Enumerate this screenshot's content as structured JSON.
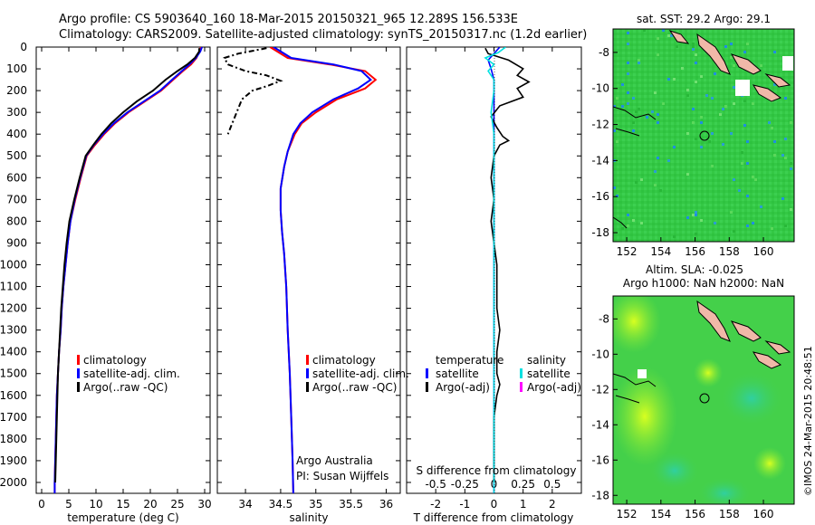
{
  "header": {
    "title_line1": "Argo profile: CS 5903640_160 18-Mar-2015 20150321_965 12.289S 156.533E",
    "title_line2": "Climatology: CARS2009. Satellite-adjusted climatology: synTS_20150317.nc (1.2d earlier)"
  },
  "colors": {
    "climatology": "#ff0000",
    "satellite_adj": "#0000ff",
    "argo": "#000000",
    "salinity_sat": "#00e0e0",
    "salinity_argo": "#ff00ff",
    "sst_map_bg": "#33cc44",
    "sla_map_bg": "#44d04a",
    "land": "#f0b8a8"
  },
  "credit": "©IMOS 24-Mar-2015 20:48:51",
  "chart_data": [
    {
      "type": "line",
      "id": "temperature-profile",
      "xlabel": "temperature (deg C)",
      "ylabel": "",
      "xlim": [
        -1,
        31
      ],
      "ylim": [
        2050,
        0
      ],
      "xticks": [
        0,
        5,
        10,
        15,
        20,
        25,
        30
      ],
      "yticks": [
        0,
        100,
        200,
        300,
        400,
        500,
        600,
        700,
        800,
        900,
        1000,
        1100,
        1200,
        1300,
        1400,
        1500,
        1600,
        1700,
        1800,
        1900,
        2000
      ],
      "legend": [
        "climatology",
        "satellite-adj. clim.",
        "Argo(..raw -QC)"
      ],
      "series": [
        {
          "name": "climatology",
          "color": "#ff0000",
          "points": [
            [
              29.3,
              0
            ],
            [
              29.0,
              20
            ],
            [
              28.5,
              50
            ],
            [
              27.5,
              80
            ],
            [
              26.0,
              110
            ],
            [
              24.2,
              150
            ],
            [
              22.0,
              200
            ],
            [
              19.0,
              250
            ],
            [
              16.0,
              300
            ],
            [
              13.5,
              350
            ],
            [
              11.5,
              400
            ],
            [
              9.8,
              450
            ],
            [
              8.3,
              500
            ],
            [
              7.2,
              600
            ],
            [
              6.2,
              700
            ],
            [
              5.3,
              800
            ],
            [
              4.8,
              900
            ],
            [
              4.4,
              1000
            ],
            [
              4.0,
              1100
            ],
            [
              3.7,
              1200
            ],
            [
              3.5,
              1300
            ],
            [
              3.2,
              1400
            ],
            [
              3.0,
              1500
            ],
            [
              2.8,
              1600
            ],
            [
              2.7,
              1700
            ],
            [
              2.6,
              1800
            ],
            [
              2.5,
              1900
            ],
            [
              2.4,
              2000
            ],
            [
              2.4,
              2050
            ]
          ]
        },
        {
          "name": "satellite-adj. clim.",
          "color": "#0000ff",
          "points": [
            [
              29.5,
              0
            ],
            [
              29.2,
              20
            ],
            [
              28.4,
              50
            ],
            [
              27.2,
              80
            ],
            [
              25.8,
              110
            ],
            [
              24.0,
              150
            ],
            [
              21.8,
              200
            ],
            [
              18.8,
              250
            ],
            [
              15.8,
              300
            ],
            [
              13.3,
              350
            ],
            [
              11.3,
              400
            ],
            [
              9.6,
              450
            ],
            [
              8.2,
              500
            ],
            [
              7.1,
              600
            ],
            [
              6.1,
              700
            ],
            [
              5.3,
              800
            ],
            [
              4.8,
              900
            ],
            [
              4.4,
              1000
            ],
            [
              4.0,
              1100
            ],
            [
              3.7,
              1200
            ],
            [
              3.5,
              1300
            ],
            [
              3.2,
              1400
            ],
            [
              3.0,
              1500
            ],
            [
              2.8,
              1600
            ],
            [
              2.7,
              1700
            ],
            [
              2.6,
              1800
            ],
            [
              2.5,
              1900
            ],
            [
              2.4,
              2000
            ],
            [
              2.4,
              2050
            ]
          ]
        },
        {
          "name": "Argo(..raw -QC)",
          "color": "#000000",
          "points": [
            [
              29.0,
              5
            ],
            [
              29.0,
              20
            ],
            [
              28.2,
              50
            ],
            [
              26.8,
              80
            ],
            [
              25.0,
              110
            ],
            [
              22.8,
              150
            ],
            [
              20.5,
              200
            ],
            [
              17.5,
              250
            ],
            [
              15.0,
              300
            ],
            [
              12.8,
              350
            ],
            [
              11.0,
              400
            ],
            [
              9.5,
              450
            ],
            [
              8.1,
              500
            ],
            [
              7.0,
              600
            ],
            [
              6.0,
              700
            ],
            [
              5.1,
              800
            ],
            [
              4.6,
              900
            ],
            [
              4.2,
              1000
            ],
            [
              3.9,
              1100
            ],
            [
              3.6,
              1200
            ],
            [
              3.4,
              1300
            ],
            [
              3.2,
              1400
            ],
            [
              3.0,
              1500
            ],
            [
              2.9,
              1600
            ],
            [
              2.8,
              1700
            ],
            [
              2.7,
              1800
            ],
            [
              2.6,
              1900
            ],
            [
              2.5,
              2000
            ]
          ]
        }
      ]
    },
    {
      "type": "line",
      "id": "salinity-profile",
      "xlabel": "salinity",
      "xlim": [
        33.6,
        36.2
      ],
      "ylim": [
        2050,
        0
      ],
      "xticks": [
        34,
        34.5,
        35,
        35.5,
        36
      ],
      "legend": [
        "climatology",
        "satellite-adj. clim.",
        "Argo(..raw -QC)"
      ],
      "annotation": [
        "Argo Australia",
        "PI: Susan Wijffels"
      ],
      "series": [
        {
          "name": "climatology",
          "color": "#ff0000",
          "points": [
            [
              34.35,
              0
            ],
            [
              34.6,
              50
            ],
            [
              35.2,
              80
            ],
            [
              35.7,
              110
            ],
            [
              35.85,
              150
            ],
            [
              35.7,
              190
            ],
            [
              35.3,
              240
            ],
            [
              35.0,
              300
            ],
            [
              34.8,
              350
            ],
            [
              34.7,
              400
            ],
            [
              34.6,
              480
            ],
            [
              34.55,
              550
            ],
            [
              34.5,
              650
            ],
            [
              34.5,
              750
            ],
            [
              34.52,
              850
            ],
            [
              34.55,
              950
            ],
            [
              34.58,
              1100
            ],
            [
              34.6,
              1300
            ],
            [
              34.63,
              1500
            ],
            [
              34.65,
              1700
            ],
            [
              34.67,
              1900
            ],
            [
              34.68,
              2050
            ]
          ]
        },
        {
          "name": "satellite-adj. clim.",
          "color": "#0000ff",
          "points": [
            [
              34.4,
              0
            ],
            [
              34.65,
              50
            ],
            [
              35.25,
              80
            ],
            [
              35.65,
              110
            ],
            [
              35.78,
              150
            ],
            [
              35.6,
              190
            ],
            [
              35.25,
              240
            ],
            [
              34.95,
              300
            ],
            [
              34.78,
              350
            ],
            [
              34.68,
              400
            ],
            [
              34.6,
              480
            ],
            [
              34.55,
              550
            ],
            [
              34.5,
              650
            ],
            [
              34.5,
              750
            ],
            [
              34.52,
              850
            ],
            [
              34.55,
              950
            ],
            [
              34.58,
              1100
            ],
            [
              34.6,
              1300
            ],
            [
              34.63,
              1500
            ],
            [
              34.65,
              1700
            ],
            [
              34.67,
              1900
            ],
            [
              34.68,
              2050
            ]
          ]
        },
        {
          "name": "Argo(..raw -QC)",
          "color": "#000000",
          "points": [
            [
              34.3,
              5
            ],
            [
              33.9,
              30
            ],
            [
              33.7,
              50
            ],
            [
              33.75,
              80
            ],
            [
              34.0,
              110
            ],
            [
              34.3,
              130
            ],
            [
              34.5,
              155
            ],
            [
              34.3,
              180
            ],
            [
              34.1,
              200
            ],
            [
              33.95,
              240
            ],
            [
              33.9,
              280
            ],
            [
              33.85,
              320
            ],
            [
              33.8,
              360
            ],
            [
              33.75,
              400
            ]
          ]
        }
      ]
    },
    {
      "type": "line",
      "id": "difference-profile",
      "xlabel_top": "S difference from climatology",
      "xlabel": "T difference from climatology",
      "xlim": [
        -3,
        3
      ],
      "ylim": [
        2050,
        0
      ],
      "xticks_bottom": [
        -2,
        -1,
        0,
        1,
        2
      ],
      "xticks_top": [
        "-0.5",
        "-0.25",
        "0",
        "0.25",
        "0.5"
      ],
      "legend_left_title": "temperature",
      "legend_right_title": "salinity",
      "legend": [
        "satellite",
        "Argo(-adj)",
        "satellite",
        "Argo(-adj)"
      ],
      "series": [
        {
          "name": "temperature satellite",
          "color": "#0000ff",
          "points": [
            [
              0.2,
              0
            ],
            [
              0.0,
              30
            ],
            [
              -0.2,
              60
            ],
            [
              -0.1,
              100
            ],
            [
              0.0,
              150
            ],
            [
              0.0,
              250
            ],
            [
              0.0,
              400
            ],
            [
              0.0,
              600
            ],
            [
              0.0,
              1000
            ],
            [
              0.0,
              1500
            ],
            [
              0.0,
              2050
            ]
          ]
        },
        {
          "name": "temperature Argo(-adj)",
          "color": "#000000",
          "points": [
            [
              -0.3,
              5
            ],
            [
              -0.2,
              30
            ],
            [
              0.5,
              60
            ],
            [
              1.0,
              100
            ],
            [
              0.8,
              130
            ],
            [
              1.2,
              160
            ],
            [
              0.8,
              190
            ],
            [
              1.0,
              230
            ],
            [
              0.2,
              270
            ],
            [
              -0.1,
              320
            ],
            [
              0.1,
              370
            ],
            [
              0.3,
              410
            ],
            [
              0.5,
              430
            ],
            [
              0.2,
              450
            ],
            [
              0.0,
              500
            ],
            [
              -0.1,
              600
            ],
            [
              0.0,
              700
            ],
            [
              -0.1,
              800
            ],
            [
              0.0,
              900
            ],
            [
              0.1,
              1000
            ],
            [
              0.1,
              1100
            ],
            [
              0.1,
              1200
            ],
            [
              0.2,
              1300
            ],
            [
              0.1,
              1400
            ],
            [
              0.1,
              1500
            ],
            [
              0.2,
              1550
            ],
            [
              0.1,
              1600
            ],
            [
              0.0,
              1700
            ],
            [
              0.0,
              1800
            ],
            [
              0.0,
              1900
            ],
            [
              0.0,
              2000
            ]
          ]
        },
        {
          "name": "salinity satellite",
          "color": "#00e0e0",
          "points": [
            [
              0.4,
              0
            ],
            [
              0.15,
              25
            ],
            [
              -0.3,
              50
            ],
            [
              0.0,
              80
            ],
            [
              -0.2,
              110
            ],
            [
              0.0,
              150
            ],
            [
              0.0,
              200
            ],
            [
              -0.1,
              300
            ],
            [
              0.0,
              400
            ],
            [
              0.0,
              600
            ],
            [
              0.0,
              1000
            ],
            [
              0.0,
              1500
            ],
            [
              0.0,
              2050
            ]
          ]
        },
        {
          "name": "salinity Argo(-adj)",
          "color": "#ff00ff",
          "points": []
        }
      ]
    },
    {
      "type": "heatmap",
      "id": "sst-map",
      "title": "sat. SST: 29.2 Argo: 29.1",
      "xticks": [
        152,
        154,
        156,
        158,
        160
      ],
      "yticks": [
        -8,
        -10,
        -12,
        -14,
        -16,
        -18
      ],
      "xlim": [
        151.2,
        161.8
      ],
      "ylim": [
        -18.5,
        -6.7
      ],
      "argo_position": [
        156.533,
        -12.289
      ]
    },
    {
      "type": "heatmap",
      "id": "sla-map",
      "title_line1": "Altim. SLA: -0.025",
      "title_line2": "Argo h1000: NaN h2000: NaN",
      "xticks": [
        152,
        154,
        156,
        158,
        160
      ],
      "yticks": [
        -8,
        -10,
        -12,
        -14,
        -16,
        -18
      ],
      "xlim": [
        151.2,
        161.8
      ],
      "ylim": [
        -18.5,
        -6.7
      ],
      "argo_position": [
        156.533,
        -12.289
      ]
    }
  ]
}
